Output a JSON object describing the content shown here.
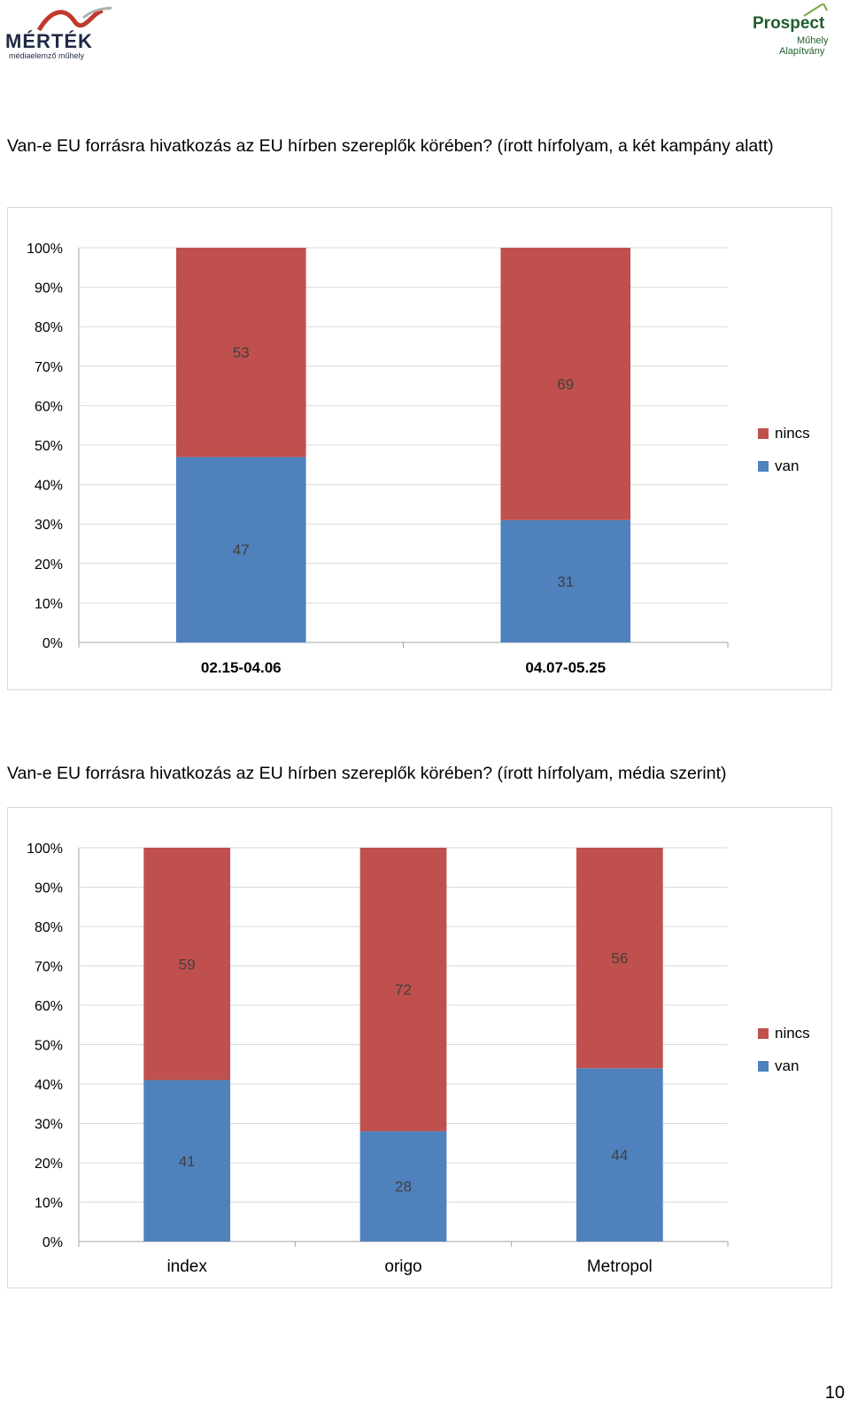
{
  "logos": {
    "left_text": "MÉRTÉK",
    "left_subtext": "médiaelemző műhely",
    "left_color": "#1f2a44",
    "left_accent": "#c0392b",
    "right_text": "Prospect",
    "right_subtext_1": "Műhely",
    "right_subtext_2": "Alapítvány",
    "right_color": "#1f5e2e"
  },
  "captions": {
    "chart1": "Van-e EU forrásra hivatkozás az EU hírben szereplők körében? (írott hírfolyam, a két kampány alatt)",
    "chart2": "Van-e EU forrásra hivatkozás az EU hírben szereplők körében? (írott hírfolyam, média szerint)"
  },
  "page_number": "10",
  "colors": {
    "van": "#4f81bd",
    "nincs": "#c0504d",
    "grid": "#d9d9d9",
    "axis": "#a6a6a6"
  },
  "chart_data": [
    {
      "type": "bar",
      "stacked": true,
      "percent": true,
      "categories": [
        "02.15-04.06",
        "04.07-05.25"
      ],
      "series": [
        {
          "name": "van",
          "values": [
            47,
            31
          ]
        },
        {
          "name": "nincs",
          "values": [
            53,
            69
          ]
        }
      ],
      "ylim": [
        0,
        100
      ],
      "yticks": [
        "0%",
        "10%",
        "20%",
        "30%",
        "40%",
        "50%",
        "60%",
        "70%",
        "80%",
        "90%",
        "100%"
      ],
      "legend": [
        "nincs",
        "van"
      ],
      "legend_position": "right",
      "grid": true
    },
    {
      "type": "bar",
      "stacked": true,
      "percent": true,
      "categories": [
        "index",
        "origo",
        "Metropol"
      ],
      "series": [
        {
          "name": "van",
          "values": [
            41,
            28,
            44
          ]
        },
        {
          "name": "nincs",
          "values": [
            59,
            72,
            56
          ]
        }
      ],
      "ylim": [
        0,
        100
      ],
      "yticks": [
        "0%",
        "10%",
        "20%",
        "30%",
        "40%",
        "50%",
        "60%",
        "70%",
        "80%",
        "90%",
        "100%"
      ],
      "legend": [
        "nincs",
        "van"
      ],
      "legend_position": "right",
      "grid": true
    }
  ]
}
